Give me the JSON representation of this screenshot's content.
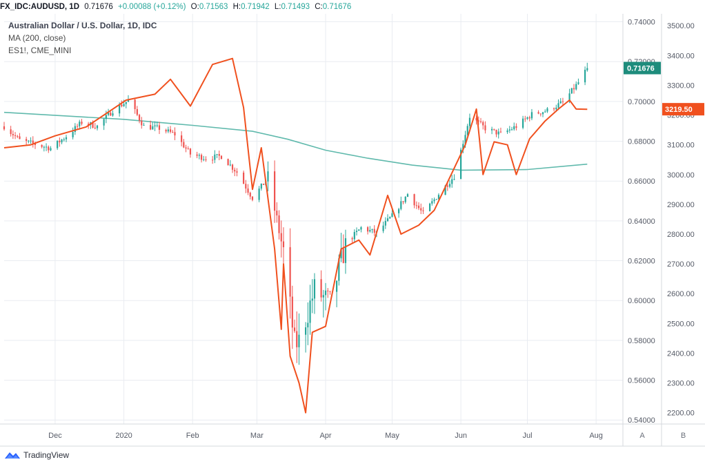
{
  "header": {
    "symbol": "FX_IDC:AUDUSD, 1D",
    "last": "0.71676",
    "change": "+0.00088 (+0.12%)",
    "o_label": "O:",
    "o_value": "0.71563",
    "h_label": "H:",
    "h_value": "0.71942",
    "l_label": "L:",
    "l_value": "0.71493",
    "c_label": "C:",
    "c_value": "0.71676"
  },
  "legend": {
    "title": "Australian Dollar / U.S. Dollar, 1D, IDC",
    "ma": "MA (200, close)",
    "overlay": "ES1!, CME_MINI"
  },
  "footer": {
    "brand": "TradingView"
  },
  "colors": {
    "up": "#26a69a",
    "down": "#ef5350",
    "ma": "#5fb9ac",
    "es": "#f0501e",
    "grid": "#e9ecf1",
    "axis_text": "#555a66",
    "price_tag": "#1e8c7c",
    "es_tag": "#f0501e"
  },
  "chart_data": {
    "type": "candlestick",
    "title": "Australian Dollar / U.S. Dollar, 1D, IDC",
    "right_axis": {
      "ticks": [
        "0.74000",
        "0.72000",
        "0.70000",
        "0.68000",
        "0.66000",
        "0.64000",
        "0.62000",
        "0.60000",
        "0.58000",
        "0.56000",
        "0.54000"
      ],
      "range": [
        0.538,
        0.744
      ],
      "last_value_tag": "0.71676"
    },
    "far_right_axis": {
      "ticks": [
        "3500.00",
        "3400.00",
        "3300.00",
        "3200.00",
        "3100.00",
        "3000.00",
        "2900.00",
        "2800.00",
        "2700.00",
        "2600.00",
        "2500.00",
        "2400.00",
        "2300.00",
        "2200.00"
      ],
      "range": [
        2162,
        3540
      ],
      "last_value_tag": "3219.50"
    },
    "x_axis": {
      "labels": [
        "Dec",
        "2020",
        "Feb",
        "Mar",
        "Apr",
        "May",
        "Jun",
        "Jul",
        "Aug"
      ],
      "axis_buttons": [
        "A",
        "B"
      ]
    },
    "grid": true,
    "series": [
      {
        "name": "FX_IDC:AUDUSD, 1D",
        "kind": "candlestick",
        "close_points": [
          [
            "2019-11-08",
            0.6875
          ],
          [
            "2019-11-15",
            0.6805
          ],
          [
            "2019-11-22",
            0.6785
          ],
          [
            "2019-11-29",
            0.6765
          ],
          [
            "2019-12-06",
            0.6825
          ],
          [
            "2019-12-13",
            0.6895
          ],
          [
            "2019-12-20",
            0.6875
          ],
          [
            "2019-12-27",
            0.6955
          ],
          [
            "2020-01-03",
            0.7005
          ],
          [
            "2020-01-10",
            0.6875
          ],
          [
            "2020-01-17",
            0.6865
          ],
          [
            "2020-01-24",
            0.6835
          ],
          [
            "2020-01-31",
            0.6735
          ],
          [
            "2020-02-07",
            0.6715
          ],
          [
            "2020-02-14",
            0.6725
          ],
          [
            "2020-02-21",
            0.6645
          ],
          [
            "2020-02-28",
            0.6515
          ],
          [
            "2020-03-06",
            0.6615
          ],
          [
            "2020-03-13",
            0.6245
          ],
          [
            "2020-03-18",
            0.578
          ],
          [
            "2020-03-20",
            0.5795
          ],
          [
            "2020-03-27",
            0.6055
          ],
          [
            "2020-04-03",
            0.5985
          ],
          [
            "2020-04-10",
            0.6285
          ],
          [
            "2020-04-17",
            0.6365
          ],
          [
            "2020-04-24",
            0.634
          ],
          [
            "2020-05-01",
            0.6425
          ],
          [
            "2020-05-08",
            0.6535
          ],
          [
            "2020-05-15",
            0.6435
          ],
          [
            "2020-05-22",
            0.6535
          ],
          [
            "2020-05-29",
            0.6625
          ],
          [
            "2020-06-05",
            0.6925
          ],
          [
            "2020-06-12",
            0.6865
          ],
          [
            "2020-06-19",
            0.6835
          ],
          [
            "2020-06-26",
            0.6875
          ],
          [
            "2020-07-03",
            0.6935
          ],
          [
            "2020-07-10",
            0.6955
          ],
          [
            "2020-07-17",
            0.6995
          ],
          [
            "2020-07-24",
            0.7095
          ],
          [
            "2020-07-28",
            0.7168
          ]
        ]
      },
      {
        "name": "MA (200, close)",
        "kind": "line",
        "points": [
          [
            "2019-11-08",
            0.6945
          ],
          [
            "2020-01-01",
            0.691
          ],
          [
            "2020-02-01",
            0.688
          ],
          [
            "2020-02-28",
            0.685
          ],
          [
            "2020-03-15",
            0.681
          ],
          [
            "2020-04-01",
            0.6755
          ],
          [
            "2020-04-20",
            0.6715
          ],
          [
            "2020-05-10",
            0.668
          ],
          [
            "2020-06-01",
            0.6655
          ],
          [
            "2020-07-01",
            0.6658
          ],
          [
            "2020-07-28",
            0.6685
          ]
        ]
      },
      {
        "name": "ES1!, CME_MINI",
        "kind": "line",
        "points": [
          [
            "2019-11-08",
            3090
          ],
          [
            "2019-11-20",
            3100
          ],
          [
            "2019-12-01",
            3130
          ],
          [
            "2019-12-15",
            3160
          ],
          [
            "2020-01-02",
            3250
          ],
          [
            "2020-01-15",
            3270
          ],
          [
            "2020-01-22",
            3320
          ],
          [
            "2020-01-31",
            3230
          ],
          [
            "2020-02-10",
            3370
          ],
          [
            "2020-02-19",
            3390
          ],
          [
            "2020-02-24",
            3225
          ],
          [
            "2020-02-28",
            2950
          ],
          [
            "2020-03-03",
            3090
          ],
          [
            "2020-03-09",
            2750
          ],
          [
            "2020-03-12",
            2480
          ],
          [
            "2020-03-13",
            2700
          ],
          [
            "2020-03-16",
            2390
          ],
          [
            "2020-03-20",
            2300
          ],
          [
            "2020-03-23",
            2200
          ],
          [
            "2020-03-26",
            2470
          ],
          [
            "2020-04-01",
            2490
          ],
          [
            "2020-04-08",
            2750
          ],
          [
            "2020-04-16",
            2780
          ],
          [
            "2020-04-21",
            2730
          ],
          [
            "2020-04-29",
            2930
          ],
          [
            "2020-05-05",
            2800
          ],
          [
            "2020-05-13",
            2830
          ],
          [
            "2020-05-20",
            2880
          ],
          [
            "2020-05-27",
            2990
          ],
          [
            "2020-06-03",
            3100
          ],
          [
            "2020-06-08",
            3220
          ],
          [
            "2020-06-11",
            3000
          ],
          [
            "2020-06-16",
            3110
          ],
          [
            "2020-06-22",
            3100
          ],
          [
            "2020-06-26",
            3000
          ],
          [
            "2020-07-02",
            3120
          ],
          [
            "2020-07-09",
            3180
          ],
          [
            "2020-07-15",
            3220
          ],
          [
            "2020-07-20",
            3250
          ],
          [
            "2020-07-23",
            3220
          ],
          [
            "2020-07-28",
            3219.5
          ]
        ]
      }
    ]
  }
}
